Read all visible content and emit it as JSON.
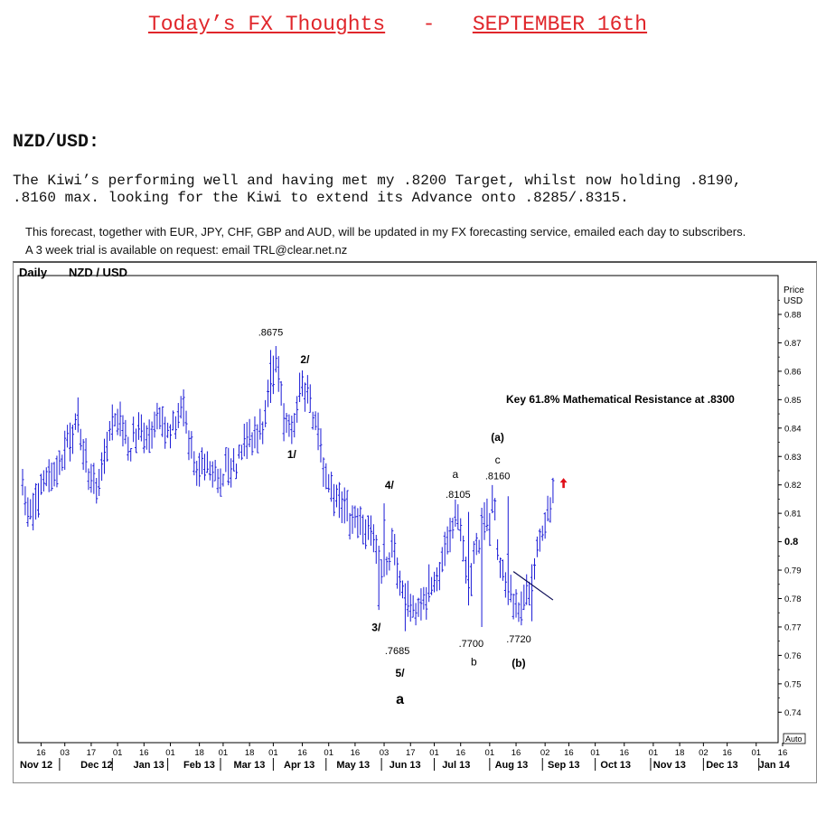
{
  "page": {
    "title_part1": "Today’s FX Thoughts",
    "title_sep": "-",
    "title_part2": "SEPTEMBER 16th",
    "heading": "NZD/USD:",
    "body_line1": "The Kiwi’s performing well and having met my .8200 Target, whilst now holding .8190,",
    "body_line2": ".8160 max. looking for the Kiwi to extend its Advance onto .8285/.8315.",
    "note_line1": "This forecast, together with EUR, JPY, CHF, GBP and AUD, will be updated in my FX forecasting service, emailed each day to subscribers.",
    "note_line2": "A 3 week trial is available on request: email TRL@clear.net.nz"
  },
  "chart_data": {
    "type": "ohlc-bar",
    "timeframe_label": "Daily",
    "instrument_label": "NZD / USD",
    "y_axis_title": [
      "Price",
      "USD"
    ],
    "y_ticks": [
      0.88,
      0.87,
      0.86,
      0.85,
      0.84,
      0.83,
      0.82,
      0.81,
      0.8,
      0.79,
      0.78,
      0.77,
      0.76,
      0.75,
      0.74
    ],
    "y_tick_labels": [
      "0.88",
      "0.87",
      "0.86",
      "0.85",
      "0.84",
      "0.83",
      "0.82",
      "0.81",
      "0.8",
      "0.79",
      "0.78",
      "0.77",
      "0.76",
      "0.75",
      "0.74"
    ],
    "ylim": [
      0.7305,
      0.8895
    ],
    "auto_label": "Auto",
    "x_day_ticks": [
      {
        "i": 7,
        "label": "16"
      },
      {
        "i": 16,
        "label": "03"
      },
      {
        "i": 26,
        "label": "17"
      },
      {
        "i": 36,
        "label": "01"
      },
      {
        "i": 46,
        "label": "16"
      },
      {
        "i": 56,
        "label": "01"
      },
      {
        "i": 67,
        "label": "18"
      },
      {
        "i": 76,
        "label": "01"
      },
      {
        "i": 86,
        "label": "18"
      },
      {
        "i": 95,
        "label": "01"
      },
      {
        "i": 106,
        "label": "16"
      },
      {
        "i": 116,
        "label": "01"
      },
      {
        "i": 126,
        "label": "16"
      },
      {
        "i": 137,
        "label": "03"
      },
      {
        "i": 147,
        "label": "17"
      },
      {
        "i": 156,
        "label": "01"
      },
      {
        "i": 166,
        "label": "16"
      },
      {
        "i": 177,
        "label": "01"
      },
      {
        "i": 187,
        "label": "16"
      },
      {
        "i": 198,
        "label": "02"
      },
      {
        "i": 207,
        "label": "16"
      },
      {
        "i": 217,
        "label": "01"
      },
      {
        "i": 228,
        "label": "16"
      },
      {
        "i": 239,
        "label": "01"
      },
      {
        "i": 249,
        "label": "18"
      },
      {
        "i": 258,
        "label": "02"
      },
      {
        "i": 267,
        "label": "16"
      },
      {
        "i": 278,
        "label": "01"
      },
      {
        "i": 288,
        "label": "16"
      }
    ],
    "x_month_labels": [
      {
        "i": 0,
        "label": "Nov 12"
      },
      {
        "i": 23,
        "label": "Dec 12"
      },
      {
        "i": 43,
        "label": "Jan 13"
      },
      {
        "i": 62,
        "label": "Feb 13"
      },
      {
        "i": 81,
        "label": "Mar 13"
      },
      {
        "i": 100,
        "label": "Apr 13"
      },
      {
        "i": 120,
        "label": "May 13"
      },
      {
        "i": 140,
        "label": "Jun 13"
      },
      {
        "i": 160,
        "label": "Jul 13"
      },
      {
        "i": 180,
        "label": "Aug 13"
      },
      {
        "i": 200,
        "label": "Sep 13"
      },
      {
        "i": 220,
        "label": "Oct 13"
      },
      {
        "i": 240,
        "label": "Nov 13"
      },
      {
        "i": 260,
        "label": "Dec 13"
      },
      {
        "i": 280,
        "label": "Jan 14"
      }
    ],
    "x_month_separators": [
      14,
      34,
      55,
      75,
      95,
      115,
      136,
      156,
      177,
      197,
      217,
      238,
      258,
      279
    ],
    "price_path": [
      {
        "i": 0,
        "v": 0.818
      },
      {
        "i": 3,
        "v": 0.81
      },
      {
        "i": 7,
        "v": 0.818
      },
      {
        "i": 10,
        "v": 0.823
      },
      {
        "i": 13,
        "v": 0.822
      },
      {
        "i": 17,
        "v": 0.835
      },
      {
        "i": 21,
        "v": 0.843
      },
      {
        "i": 24,
        "v": 0.828
      },
      {
        "i": 27,
        "v": 0.818
      },
      {
        "i": 30,
        "v": 0.825
      },
      {
        "i": 33,
        "v": 0.838
      },
      {
        "i": 37,
        "v": 0.842
      },
      {
        "i": 41,
        "v": 0.834
      },
      {
        "i": 44,
        "v": 0.842
      },
      {
        "i": 48,
        "v": 0.838
      },
      {
        "i": 52,
        "v": 0.845
      },
      {
        "i": 55,
        "v": 0.836
      },
      {
        "i": 58,
        "v": 0.842
      },
      {
        "i": 61,
        "v": 0.848
      },
      {
        "i": 63,
        "v": 0.836
      },
      {
        "i": 66,
        "v": 0.826
      },
      {
        "i": 69,
        "v": 0.83
      },
      {
        "i": 72,
        "v": 0.824
      },
      {
        "i": 75,
        "v": 0.822
      },
      {
        "i": 78,
        "v": 0.827
      },
      {
        "i": 81,
        "v": 0.828
      },
      {
        "i": 84,
        "v": 0.838
      },
      {
        "i": 88,
        "v": 0.836
      },
      {
        "i": 91,
        "v": 0.842
      },
      {
        "i": 94,
        "v": 0.855
      },
      {
        "i": 96,
        "v": 0.862
      },
      {
        "i": 99,
        "v": 0.845
      },
      {
        "i": 102,
        "v": 0.838
      },
      {
        "i": 105,
        "v": 0.855
      },
      {
        "i": 108,
        "v": 0.855
      },
      {
        "i": 111,
        "v": 0.84
      },
      {
        "i": 114,
        "v": 0.826
      },
      {
        "i": 117,
        "v": 0.818
      },
      {
        "i": 121,
        "v": 0.813
      },
      {
        "i": 124,
        "v": 0.808
      },
      {
        "i": 128,
        "v": 0.805
      },
      {
        "i": 131,
        "v": 0.806
      },
      {
        "i": 134,
        "v": 0.798
      },
      {
        "i": 136,
        "v": 0.79
      },
      {
        "i": 138,
        "v": 0.79
      },
      {
        "i": 140,
        "v": 0.804
      },
      {
        "i": 142,
        "v": 0.79
      },
      {
        "i": 144,
        "v": 0.78
      },
      {
        "i": 147,
        "v": 0.776
      },
      {
        "i": 150,
        "v": 0.778
      },
      {
        "i": 153,
        "v": 0.78
      },
      {
        "i": 156,
        "v": 0.788
      },
      {
        "i": 159,
        "v": 0.792
      },
      {
        "i": 162,
        "v": 0.8
      },
      {
        "i": 165,
        "v": 0.808
      },
      {
        "i": 167,
        "v": 0.799
      },
      {
        "i": 169,
        "v": 0.782
      },
      {
        "i": 171,
        "v": 0.795
      },
      {
        "i": 174,
        "v": 0.805
      },
      {
        "i": 177,
        "v": 0.808
      },
      {
        "i": 179,
        "v": 0.812
      },
      {
        "i": 181,
        "v": 0.79
      },
      {
        "i": 184,
        "v": 0.782
      },
      {
        "i": 187,
        "v": 0.778
      },
      {
        "i": 189,
        "v": 0.776
      },
      {
        "i": 191,
        "v": 0.782
      },
      {
        "i": 193,
        "v": 0.788
      },
      {
        "i": 196,
        "v": 0.802
      },
      {
        "i": 198,
        "v": 0.808
      },
      {
        "i": 201,
        "v": 0.818
      }
    ],
    "anchors": [
      {
        "i": 4,
        "lo": 0.804
      },
      {
        "i": 94,
        "hi": 0.8675
      },
      {
        "i": 105,
        "hi": 0.8595
      },
      {
        "i": 135,
        "lo": 0.776
      },
      {
        "i": 137,
        "hi": 0.8135
      },
      {
        "i": 145,
        "lo": 0.7685
      },
      {
        "i": 169,
        "hi": 0.8105
      },
      {
        "i": 174,
        "lo": 0.77
      },
      {
        "i": 184,
        "hi": 0.816
      },
      {
        "i": 193,
        "lo": 0.772
      },
      {
        "i": 201,
        "hi": 0.8225
      }
    ],
    "trendline": {
      "i1": 186,
      "v1": 0.7895,
      "i2": 201,
      "v2": 0.7795
    },
    "annotations": [
      {
        "text": ".8675",
        "i": 94,
        "v": 0.8725,
        "size": 11,
        "bold": false
      },
      {
        "text": "2/",
        "i": 107,
        "v": 0.8628,
        "size": 12,
        "bold": true
      },
      {
        "text": "1/",
        "i": 102,
        "v": 0.8295,
        "size": 12,
        "bold": true
      },
      {
        "text": "Key 61.8%  Mathematical Resistance  at  .8300",
        "i": 202,
        "v": 0.8488,
        "size": 12,
        "bold": true
      },
      {
        "text": "(a)",
        "i": 180,
        "v": 0.8355,
        "size": 12,
        "bold": true
      },
      {
        "text": "c",
        "i": 180,
        "v": 0.8275,
        "size": 12,
        "bold": false
      },
      {
        "text": ".8160",
        "i": 180,
        "v": 0.822,
        "size": 11,
        "bold": false
      },
      {
        "text": "a",
        "i": 164,
        "v": 0.8225,
        "size": 12,
        "bold": false
      },
      {
        "text": ".8105",
        "i": 165,
        "v": 0.8155,
        "size": 11,
        "bold": false
      },
      {
        "text": "4/",
        "i": 139,
        "v": 0.8187,
        "size": 12,
        "bold": true
      },
      {
        "text": "3/",
        "i": 134,
        "v": 0.7685,
        "size": 12,
        "bold": true
      },
      {
        "text": ".7685",
        "i": 142,
        "v": 0.7605,
        "size": 11,
        "bold": false
      },
      {
        "text": "5/",
        "i": 143,
        "v": 0.7525,
        "size": 12,
        "bold": true
      },
      {
        "text": "a",
        "i": 143,
        "v": 0.743,
        "size": 16,
        "bold": true
      },
      {
        "text": ".7700",
        "i": 170,
        "v": 0.763,
        "size": 11,
        "bold": false
      },
      {
        "text": "b",
        "i": 171,
        "v": 0.7565,
        "size": 12,
        "bold": false
      },
      {
        "text": ".7720",
        "i": 188,
        "v": 0.7645,
        "size": 11,
        "bold": false
      },
      {
        "text": "(b)",
        "i": 188,
        "v": 0.756,
        "size": 12,
        "bold": true
      }
    ],
    "target_arrow": {
      "i": 205,
      "v": 0.8205,
      "color": "#e0101a"
    },
    "colors": {
      "bars": "#1a1ad6",
      "grid": "#000000",
      "trendline": "#0a0a55"
    }
  }
}
